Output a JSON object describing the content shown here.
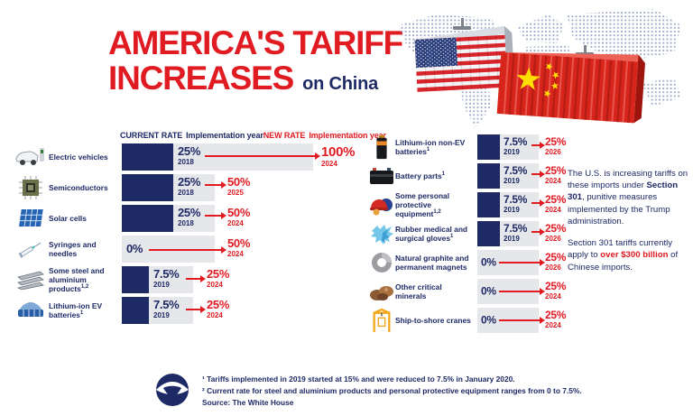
{
  "title": {
    "line1": "AMERICA'S TARIFF",
    "line2": "INCREASES",
    "line2_suffix": "on China"
  },
  "columns_header": {
    "current_rate": "CURRENT RATE",
    "current_impl_year": "Implementation year",
    "new_rate": "NEW RATE",
    "new_impl_year": "Implementation year"
  },
  "side_note": {
    "p1_pre": "The U.S. is increasing tariffs on these imports under ",
    "p1_bold": "Section 301",
    "p1_post": ", punitive measures implemented by the Trump administration.",
    "p2_pre": "Section 301 tariffs currently apply to ",
    "p2_highlight": "over $300 billion",
    "p2_post": " of Chinese imports."
  },
  "footnotes": {
    "line1": "¹ Tariffs implemented in 2019 started at 15% and were reduced to 7.5% in January 2020.",
    "line2": "² Current rate for steel and aluminium products and personal protective equipment ranges from 0 to 7.5%.",
    "line3": "Source: The White House"
  },
  "colors": {
    "navy": "#1e2a66",
    "red": "#e01b22",
    "bar_gray": "#e6e7ea",
    "china_flag_red": "#d8251c",
    "us_flag_blue": "#2b3f7e",
    "map_dot": "#8e9cc2"
  },
  "chart_data": {
    "type": "table",
    "title": "America's Tariff Increases on China",
    "columns": [
      "item",
      "current_rate",
      "current_implementation_year",
      "new_rate",
      "new_implementation_year"
    ],
    "groups": {
      "left": [
        {
          "label": "Electric vehicles",
          "sup": "",
          "icon": "ev-car",
          "current_rate": "25%",
          "current_year": "2018",
          "new_rate": "100%",
          "new_year": "2024"
        },
        {
          "label": "Semiconductors",
          "sup": "",
          "icon": "semiconductor",
          "current_rate": "25%",
          "current_year": "2018",
          "new_rate": "50%",
          "new_year": "2025"
        },
        {
          "label": "Solar cells",
          "sup": "",
          "icon": "solar-panel",
          "current_rate": "25%",
          "current_year": "2018",
          "new_rate": "50%",
          "new_year": "2024"
        },
        {
          "label": "Syringes and needles",
          "sup": "",
          "icon": "syringe",
          "current_rate": "0%",
          "current_year": "",
          "new_rate": "50%",
          "new_year": "2024"
        },
        {
          "label": "Some steel and aluminium products",
          "sup": "1,2",
          "icon": "steel-beams",
          "current_rate": "7.5%",
          "current_year": "2019",
          "new_rate": "25%",
          "new_year": "2024"
        },
        {
          "label": "Lithium-ion EV batteries",
          "sup": "1",
          "icon": "ev-battery",
          "current_rate": "7.5%",
          "current_year": "2019",
          "new_rate": "25%",
          "new_year": "2024"
        }
      ],
      "right": [
        {
          "label": "Lithium-ion non-EV batteries",
          "sup": "1",
          "icon": "battery-cell",
          "current_rate": "7.5%",
          "current_year": "2019",
          "new_rate": "25%",
          "new_year": "2026"
        },
        {
          "label": "Battery parts",
          "sup": "1",
          "icon": "car-battery",
          "current_rate": "7.5%",
          "current_year": "2019",
          "new_rate": "25%",
          "new_year": "2024"
        },
        {
          "label": "Some personal protective equipment",
          "sup": "1,2",
          "icon": "ppe",
          "current_rate": "7.5%",
          "current_year": "2019",
          "new_rate": "25%",
          "new_year": "2024"
        },
        {
          "label": "Rubber medical and surgical gloves",
          "sup": "1",
          "icon": "gloves",
          "current_rate": "7.5%",
          "current_year": "2019",
          "new_rate": "25%",
          "new_year": "2026"
        },
        {
          "label": "Natural graphite and permanent magnets",
          "sup": "",
          "icon": "magnet-ring",
          "current_rate": "0%",
          "current_year": "",
          "new_rate": "25%",
          "new_year": "2026"
        },
        {
          "label": "Other critical minerals",
          "sup": "",
          "icon": "minerals",
          "current_rate": "0%",
          "current_year": "",
          "new_rate": "25%",
          "new_year": "2024"
        },
        {
          "label": "Ship-to-shore cranes",
          "sup": "",
          "icon": "crane",
          "current_rate": "0%",
          "current_year": "",
          "new_rate": "25%",
          "new_year": "2024"
        }
      ]
    }
  }
}
